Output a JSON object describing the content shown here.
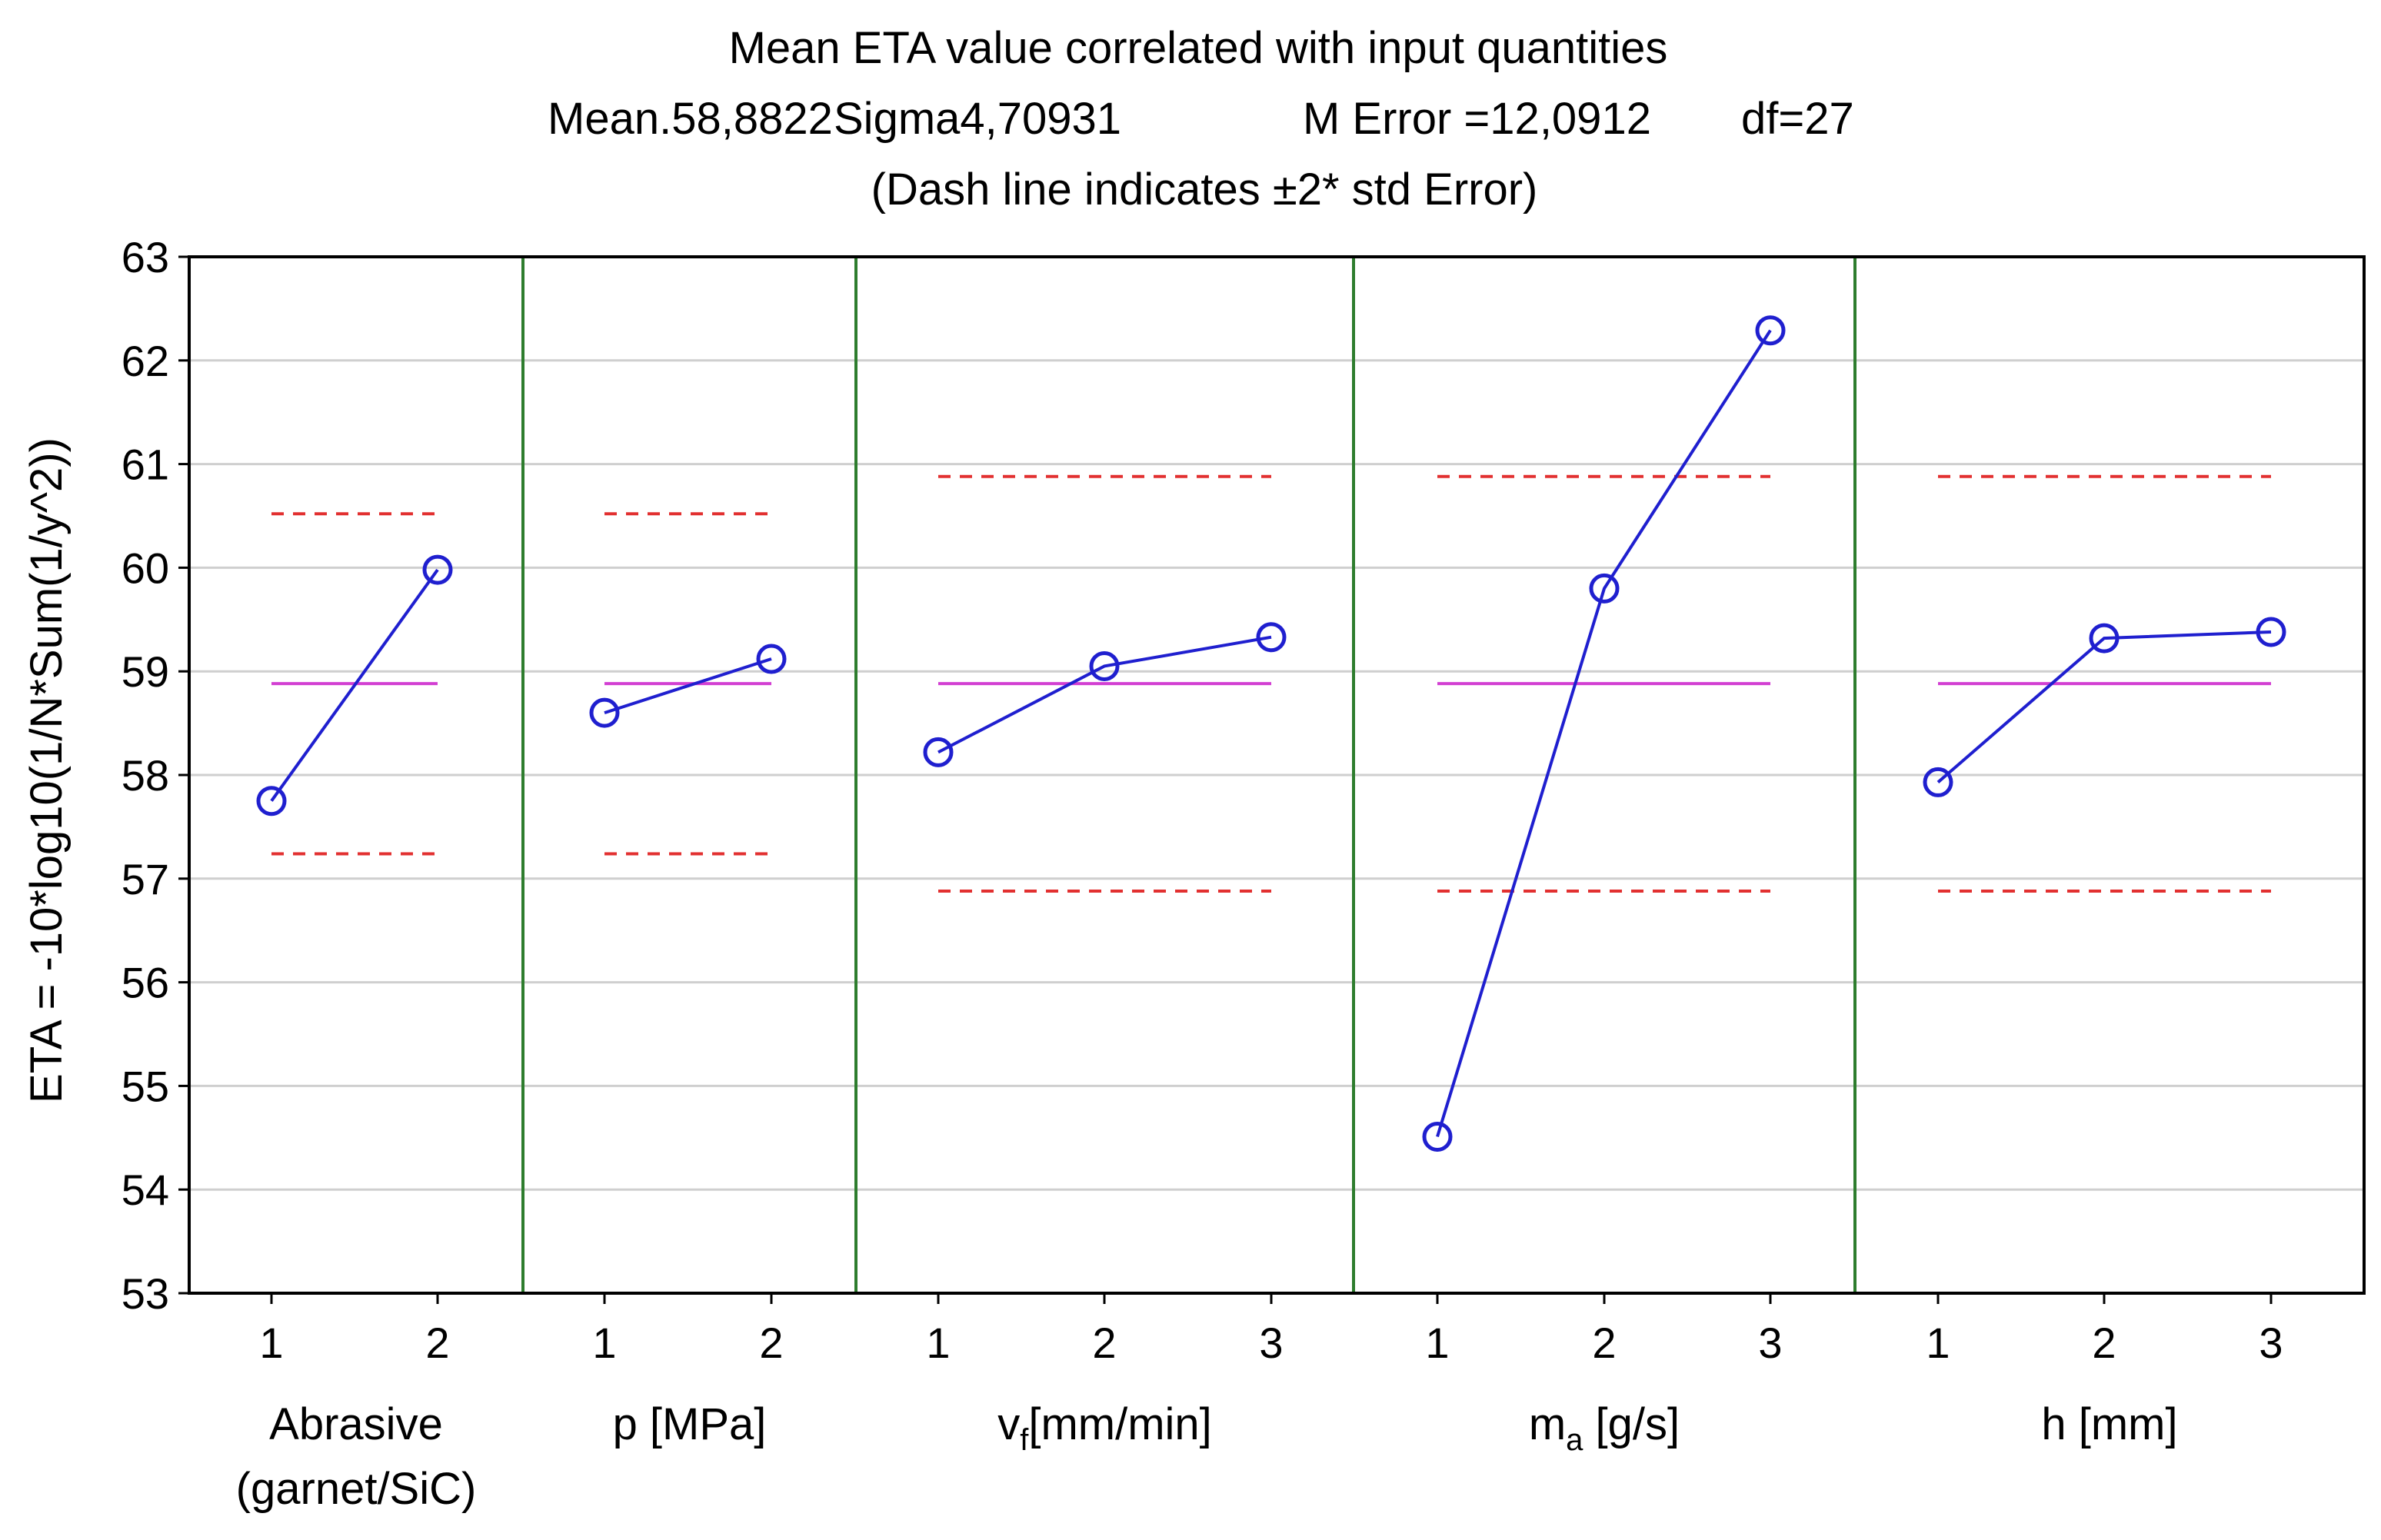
{
  "chart_data": {
    "type": "line",
    "title": "Mean ETA value correlated with input quantities",
    "subtitle": {
      "mean": "Mean.58,8822",
      "sigma": "Sigma4,70931",
      "merror": "M Error =12,0912",
      "df": "df=27"
    },
    "note": "(Dash line indicates ±2* std Error)",
    "ylabel": "ETA = -10*log10(1/N*Sum(1/y^2))",
    "ylim": [
      53,
      63
    ],
    "yticks": [
      "53",
      "54",
      "55",
      "56",
      "57",
      "58",
      "59",
      "60",
      "61",
      "62",
      "63"
    ],
    "grid": true,
    "mean_line": 58.8822,
    "colors": {
      "series": "#1f1fcf",
      "mean": "#d23fd2",
      "limits": "#e23030",
      "separator": "#2e7d2e",
      "grid": "#cfcfcf"
    },
    "factors": [
      {
        "name": "Abrasive",
        "name2": "(garnet/SiC)",
        "levels": [
          "1",
          "2"
        ],
        "values": [
          57.75,
          59.98
        ],
        "upper": 60.52,
        "lower": 57.24
      },
      {
        "name": "p [MPa]",
        "name2": "",
        "levels": [
          "1",
          "2"
        ],
        "values": [
          58.6,
          59.12
        ],
        "upper": 60.52,
        "lower": 57.24
      },
      {
        "name": "v",
        "sub": "f",
        "rest": "[mm/min]",
        "levels": [
          "1",
          "2",
          "3"
        ],
        "values": [
          58.22,
          59.05,
          59.33
        ],
        "upper": 60.88,
        "lower": 56.88
      },
      {
        "name": "m",
        "sub": "a",
        "rest": " [g/s]",
        "levels": [
          "1",
          "2",
          "3"
        ],
        "values": [
          54.51,
          59.8,
          62.29
        ],
        "upper": 60.88,
        "lower": 56.88
      },
      {
        "name": "h [mm]",
        "name2": "",
        "levels": [
          "1",
          "2",
          "3"
        ],
        "values": [
          57.93,
          59.32,
          59.38
        ],
        "upper": 60.88,
        "lower": 56.88
      }
    ]
  }
}
